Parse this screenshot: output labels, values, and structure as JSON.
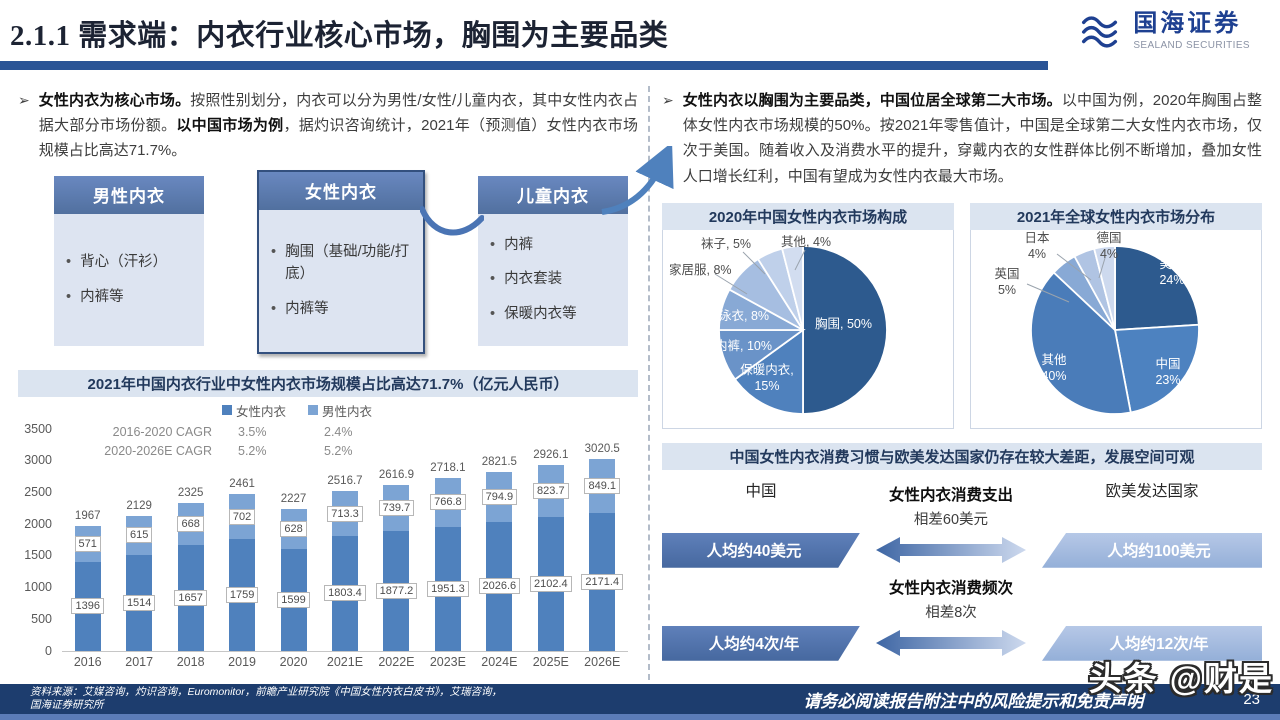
{
  "header": {
    "title": "2.1.1 需求端：内衣行业核心市场，胸围为主要品类",
    "logo_cn": "国海证券",
    "logo_en": "SEALAND SECURITIES"
  },
  "left": {
    "para": {
      "marker": "➢",
      "bold1": "女性内衣为核心市场。",
      "text1": "按照性别划分，内衣可以分为男性/女性/儿童内衣，其中女性内衣占据大部分市场份额。",
      "bold2": "以中国市场为例",
      "text2": "，据灼识咨询统计，2021年（预测值）女性内衣市场规模占比高达71.7%。"
    },
    "boxes": [
      {
        "title": "男性内衣",
        "items": [
          "背心（汗衫）",
          "内裤等"
        ]
      },
      {
        "title": "女性内衣",
        "items": [
          "胸围（基础/功能/打底）",
          "内裤等"
        ]
      },
      {
        "title": "儿童内衣",
        "items": [
          "内裤",
          "内衣套装",
          "保暖内衣等"
        ]
      }
    ]
  },
  "right": {
    "para": {
      "marker": "➢",
      "bold1": "女性内衣以胸围为主要品类，中国位居全球第二大市场。",
      "text1": "以中国为例，2020年胸围占整体女性内衣市场规模的50%。按2021年零售值计，中国是全球第二大女性内衣市场，仅次于美国。随着收入及消费水平的提升，穿戴内衣的女性群体比例不断增加，叠加女性人口增长红利，中国有望成为女性内衣最大市场。"
    }
  },
  "comparison": {
    "header": "中国女性内衣消费习惯与欧美发达国家仍存在较大差距，发展空间可观",
    "col_left": "中国",
    "col_right": "欧美发达国家",
    "rows": [
      {
        "metric": "女性内衣消费支出",
        "gap": "相差60美元",
        "left": "人均约40美元",
        "right": "人均约100美元"
      },
      {
        "metric": "女性内衣消费频次",
        "gap": "相差8次",
        "left": "人均约4次/年",
        "right": "人均约12次/年"
      }
    ]
  },
  "footer": {
    "source_line1": "资料来源：艾媒咨询，灼识咨询，Euromonitor，前瞻产业研究院《中国女性内衣白皮书》，艾瑞咨询，",
    "source_line2": "国海证券研究所",
    "disclaimer": "请务必阅读报告附注中的风险提示和免责声明",
    "page": "23"
  },
  "watermark": "头条 @财是",
  "colors": {
    "accent_dark": "#2a5496",
    "bar_female": "#4f81bd",
    "bar_male": "#7ca4d4"
  },
  "chart_data": [
    {
      "type": "bar",
      "stacked": true,
      "title": "2021年中国内衣行业中女性内衣市场规模占比高达71.7%（亿元人民币）",
      "categories": [
        "2016",
        "2017",
        "2018",
        "2019",
        "2020",
        "2021E",
        "2022E",
        "2023E",
        "2024E",
        "2025E",
        "2026E"
      ],
      "series": [
        {
          "name": "女性内衣",
          "color": "#4f81bd",
          "values": [
            1396,
            1514,
            1657,
            1759,
            1599,
            1803.4,
            1877.2,
            1951.3,
            2026.6,
            2102.4,
            2171.4
          ]
        },
        {
          "name": "男性内衣",
          "color": "#7ca4d4",
          "values": [
            571,
            615,
            668,
            702,
            628,
            713.3,
            739.7,
            766.8,
            794.9,
            823.7,
            849.1
          ]
        }
      ],
      "totals": [
        1967,
        2129,
        2325,
        2461,
        2227,
        2516.7,
        2616.9,
        2718.1,
        2821.5,
        2926.1,
        3020.5
      ],
      "ylim": [
        0,
        3500
      ],
      "yticks": [
        0,
        500,
        1000,
        1500,
        2000,
        2500,
        3000,
        3500
      ],
      "cagr": {
        "rows": [
          {
            "label": "2016-2020 CAGR",
            "values": [
              "3.5%",
              "2.4%"
            ]
          },
          {
            "label": "2020-2026E CAGR",
            "values": [
              "5.2%",
              "5.2%"
            ]
          }
        ]
      }
    },
    {
      "type": "pie",
      "title": "2020年中国女性内衣市场构成",
      "labels": [
        "胸围",
        "保暖内衣",
        "内裤",
        "泳衣",
        "家居服",
        "袜子",
        "其他"
      ],
      "values": [
        50,
        15,
        10,
        8,
        8,
        5,
        4
      ],
      "unit": "%",
      "colors": [
        "#2d5a8e",
        "#4f81bd",
        "#6a93c8",
        "#88a9d5",
        "#a6bee1",
        "#bfd0ea",
        "#d2ddf0"
      ]
    },
    {
      "type": "pie",
      "title": "2021年全球女性内衣市场分布",
      "labels": [
        "美国",
        "中国",
        "其他",
        "英国",
        "日本",
        "德国"
      ],
      "values": [
        24,
        23,
        40,
        5,
        4,
        4
      ],
      "unit": "%",
      "colors": [
        "#2d5a8e",
        "#4d82c0",
        "#4a7cb9",
        "#88a9d5",
        "#b0c4e3",
        "#cdd9ee"
      ]
    }
  ]
}
